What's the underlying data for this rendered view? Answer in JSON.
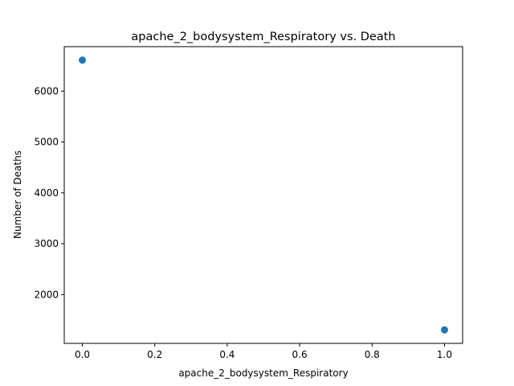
{
  "chart_data": {
    "type": "scatter",
    "title": "apache_2_bodysystem_Respiratory vs. Death",
    "xlabel": "apache_2_bodysystem_Respiratory",
    "ylabel": "Number of Deaths",
    "x": [
      0,
      1
    ],
    "y": [
      6610,
      1305
    ],
    "xlim": [
      -0.05,
      1.05
    ],
    "ylim": [
      1040,
      6875
    ],
    "xticks": [
      0.0,
      0.2,
      0.4,
      0.6,
      0.8,
      1.0
    ],
    "xtick_labels": [
      "0.0",
      "0.2",
      "0.4",
      "0.6",
      "0.8",
      "1.0"
    ],
    "yticks": [
      2000,
      3000,
      4000,
      5000,
      6000
    ],
    "ytick_labels": [
      "2000",
      "3000",
      "4000",
      "5000",
      "6000"
    ],
    "grid": false,
    "colors": {
      "marker": "#1f77b4"
    }
  }
}
